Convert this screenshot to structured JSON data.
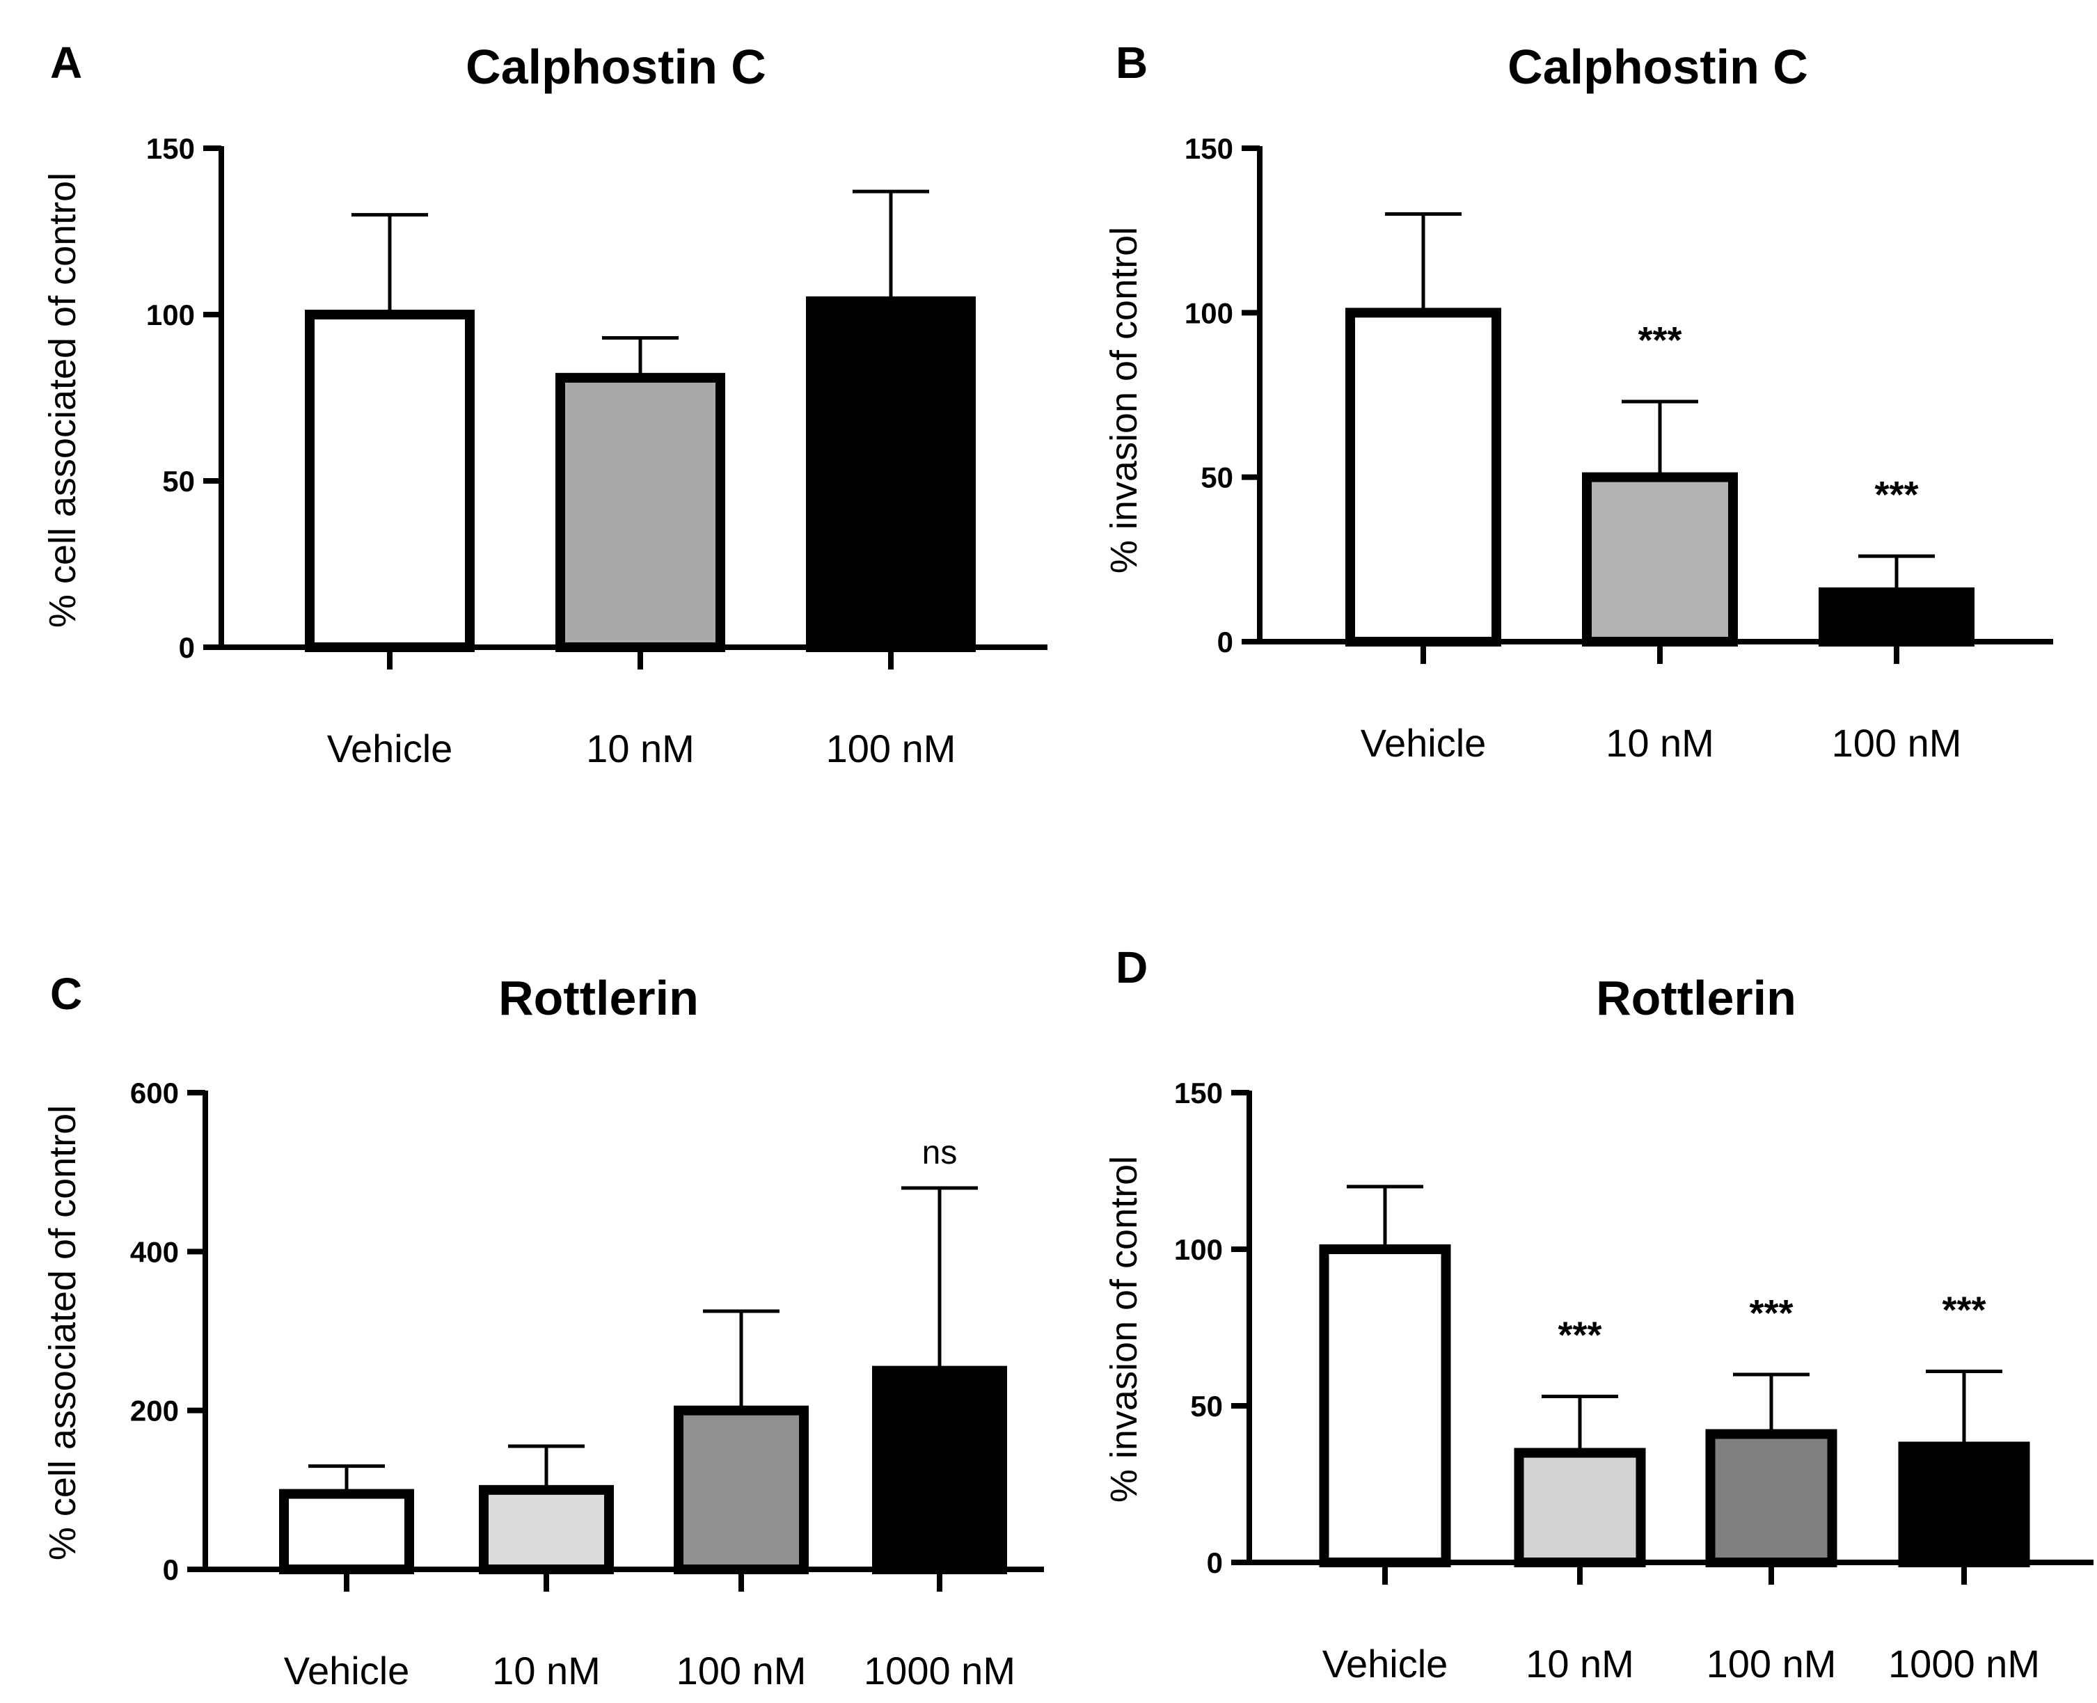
{
  "chart_data": [
    {
      "panel": "A",
      "type": "bar",
      "title": "Calphostin C",
      "ylabel": "% cell associated of control",
      "xlabel": "",
      "ylim": [
        0,
        150
      ],
      "yticks": [
        0,
        50,
        100,
        150
      ],
      "categories": [
        "Vehicle",
        "10 nM",
        "100 nM"
      ],
      "values": [
        100,
        81,
        104
      ],
      "errors": [
        30,
        12,
        33
      ],
      "fills": [
        "#ffffff",
        "#a9a9a9",
        "#000000"
      ],
      "annotations": [
        "",
        "",
        ""
      ]
    },
    {
      "panel": "B",
      "type": "bar",
      "title": "Calphostin C",
      "ylabel": "% invasion of control",
      "xlabel": "",
      "ylim": [
        0,
        150
      ],
      "yticks": [
        0,
        50,
        100,
        150
      ],
      "categories": [
        "Vehicle",
        "10 nM",
        "100 nM"
      ],
      "values": [
        100,
        50,
        15
      ],
      "errors": [
        30,
        23,
        11
      ],
      "fills": [
        "#ffffff",
        "#b3b3b3",
        "#000000"
      ],
      "annotations": [
        "",
        "***",
        "***"
      ]
    },
    {
      "panel": "C",
      "type": "bar",
      "title": "Rottlerin",
      "ylabel": "% cell associated of control",
      "xlabel": "",
      "ylim": [
        0,
        600
      ],
      "yticks": [
        0,
        200,
        400,
        600
      ],
      "categories": [
        "Vehicle",
        "10 nM",
        "100 nM",
        "1000 nM"
      ],
      "values": [
        95,
        100,
        200,
        250
      ],
      "errors": [
        35,
        55,
        125,
        230
      ],
      "fills": [
        "#ffffff",
        "#dcdcdc",
        "#909090",
        "#000000"
      ],
      "annotations": [
        "",
        "",
        "",
        "ns"
      ]
    },
    {
      "panel": "D",
      "type": "bar",
      "title": "Rottlerin",
      "ylabel": "% invasion of control",
      "xlabel": "",
      "ylim": [
        0,
        150
      ],
      "yticks": [
        0,
        50,
        100,
        150
      ],
      "categories": [
        "Vehicle",
        "10 nM",
        "100 nM",
        "1000 nM"
      ],
      "values": [
        100,
        35,
        41,
        37
      ],
      "errors": [
        20,
        18,
        19,
        24
      ],
      "fills": [
        "#ffffff",
        "#d3d3d3",
        "#808080",
        "#000000"
      ],
      "annotations": [
        "",
        "***",
        "***",
        "***"
      ]
    }
  ]
}
